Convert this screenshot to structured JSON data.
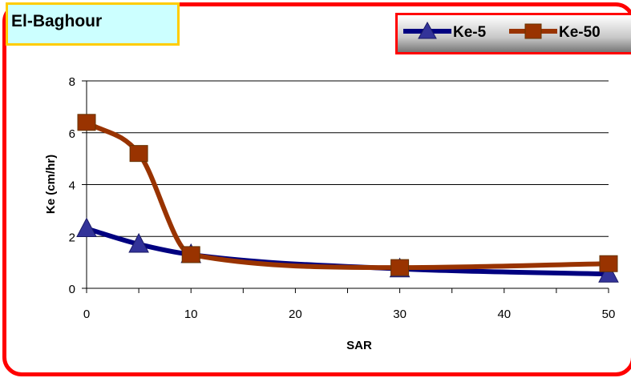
{
  "chart_data": {
    "type": "line",
    "title": "El-Baghour",
    "xlabel": "SAR",
    "ylabel": "Ke (cm/hr)",
    "xlim": [
      0,
      50
    ],
    "ylim": [
      0,
      8
    ],
    "x_ticks": [
      0,
      10,
      20,
      30,
      40,
      50
    ],
    "y_ticks": [
      0,
      2,
      4,
      6,
      8
    ],
    "grid": "horizontal",
    "legend_position": "top-right",
    "smooth": true,
    "series": [
      {
        "name": "Ke-5",
        "marker": "triangle",
        "color": "#000080",
        "x": [
          0,
          5,
          10,
          30,
          50
        ],
        "y": [
          2.3,
          1.7,
          1.3,
          0.75,
          0.55
        ]
      },
      {
        "name": "Ke-50",
        "marker": "square",
        "color": "#993300",
        "x": [
          0,
          5,
          10,
          30,
          50
        ],
        "y": [
          6.4,
          5.2,
          1.3,
          0.8,
          0.95
        ]
      }
    ]
  }
}
